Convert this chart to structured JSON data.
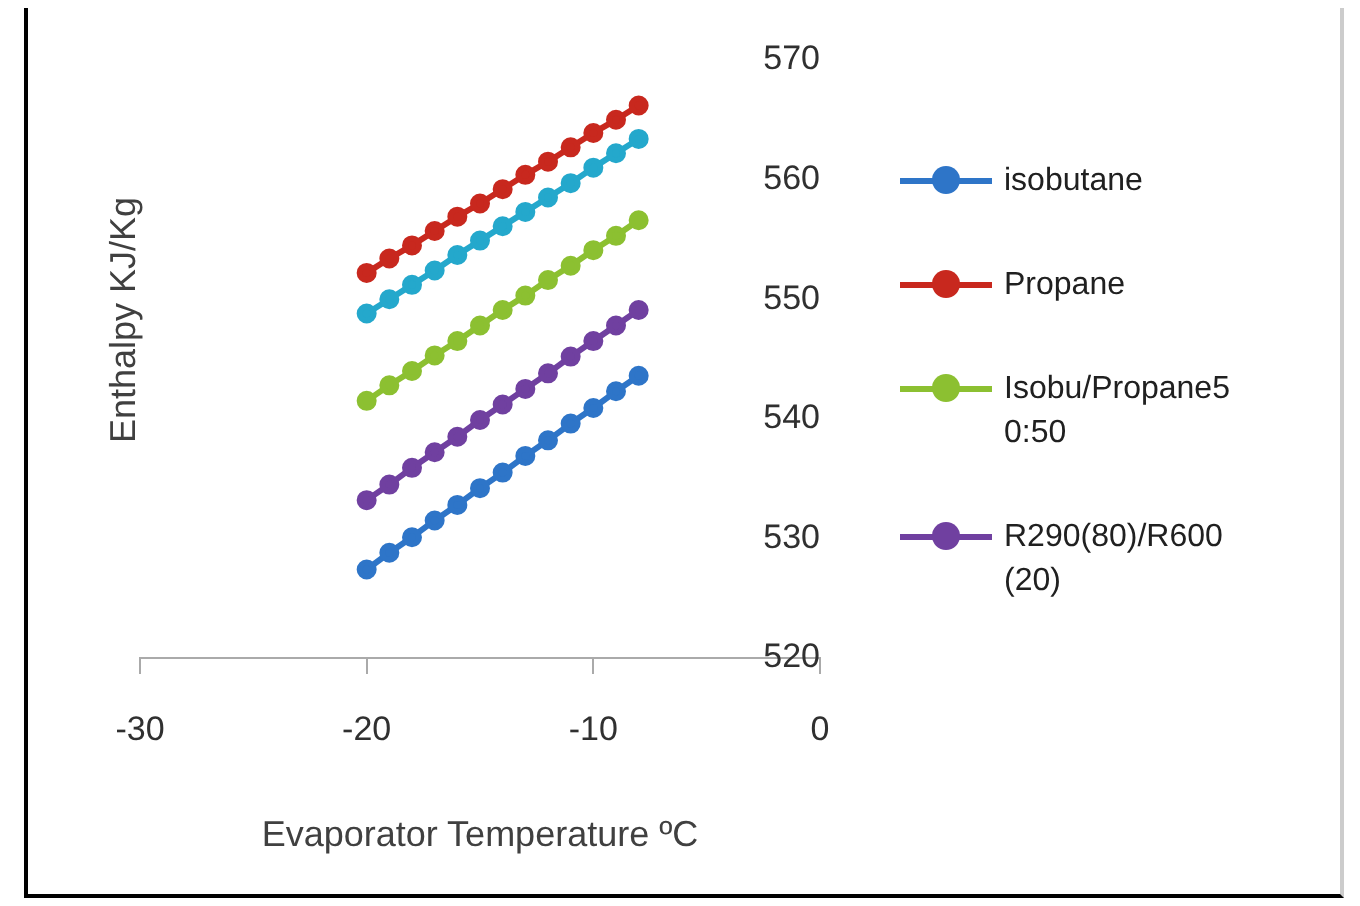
{
  "chart_data": {
    "type": "line",
    "xlabel": "Evaporator Temperature ºC",
    "ylabel": "Enthalpy KJ/Kg",
    "x": [
      -20,
      -19,
      -18,
      -17,
      -16,
      -15,
      -14,
      -13,
      -12,
      -11,
      -10,
      -9,
      -8
    ],
    "series": [
      {
        "name": "isobutane",
        "color": "#2e75c8",
        "values": [
          527.4,
          528.8,
          530.1,
          531.5,
          532.8,
          534.2,
          535.5,
          536.9,
          538.2,
          539.6,
          540.9,
          542.3,
          543.6
        ]
      },
      {
        "name": "Propane",
        "color": "#c8281e",
        "values": [
          552.2,
          553.4,
          554.5,
          555.7,
          556.9,
          558.0,
          559.2,
          560.4,
          561.5,
          562.7,
          563.9,
          565.0,
          566.2
        ]
      },
      {
        "name": "Isobu/Propane50:50",
        "color": "#8cc031",
        "values": [
          541.5,
          542.8,
          544.0,
          545.3,
          546.5,
          547.8,
          549.1,
          550.3,
          551.6,
          552.8,
          554.1,
          555.3,
          556.6
        ]
      },
      {
        "name": "R290(80)/R600(20)",
        "color": "#7040a0",
        "values": [
          533.2,
          534.5,
          535.9,
          537.2,
          538.5,
          539.9,
          541.2,
          542.5,
          543.8,
          545.2,
          546.5,
          547.8,
          549.1
        ]
      },
      {
        "color": "#24a8cc",
        "values": [
          548.8,
          550.0,
          551.2,
          552.4,
          553.7,
          554.9,
          556.1,
          557.3,
          558.5,
          559.7,
          561.0,
          562.2,
          563.4
        ]
      }
    ],
    "xlim": [
      -30,
      0
    ],
    "xticks": [
      -30,
      -20,
      -10,
      0
    ],
    "ylim": [
      520,
      570
    ],
    "yticks": [
      520,
      530,
      540,
      550,
      560,
      570
    ],
    "grid": false,
    "legend": "right",
    "marker": "circle"
  }
}
